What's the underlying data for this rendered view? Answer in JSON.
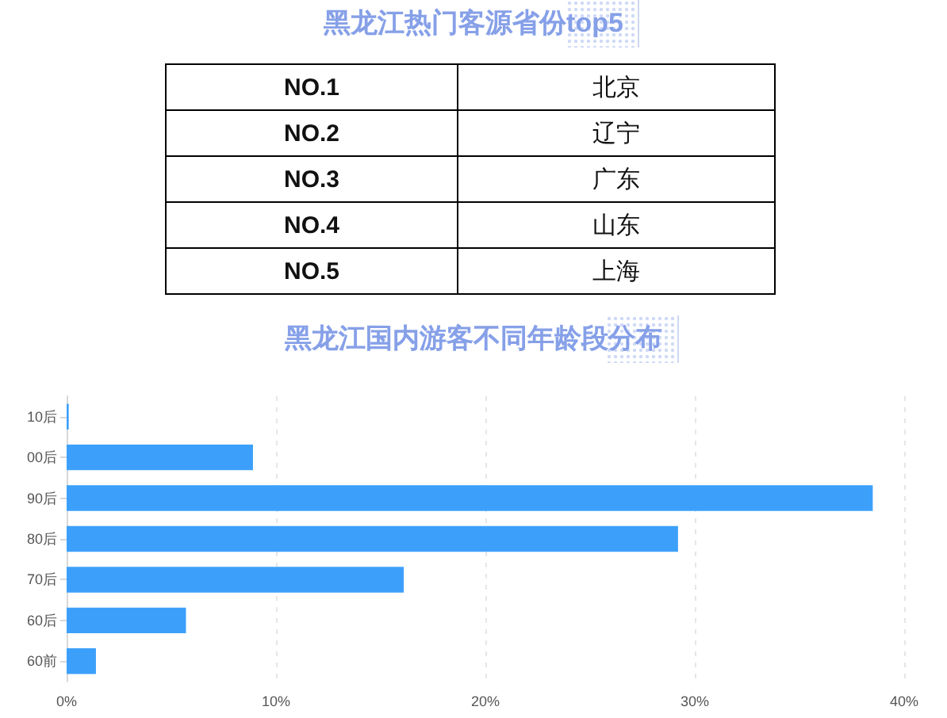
{
  "chart_data": [
    {
      "type": "other",
      "title": "黑龙江热门客源省份top5",
      "annotations": [
        "NO.1",
        "北京",
        "NO.2",
        "辽宁",
        "NO.3",
        "广东",
        "NO.4",
        "山东",
        "NO.5",
        "上海"
      ]
    },
    {
      "type": "bar",
      "title": "黑龙江国内游客不同年龄段分布",
      "orientation": "horizontal",
      "categories": [
        "10后",
        "00后",
        "90后",
        "80后",
        "70后",
        "60后",
        "60前"
      ],
      "values": [
        0.1,
        8.9,
        38.5,
        29.2,
        16.1,
        5.7,
        1.4
      ],
      "color": "#3ca0fb",
      "xlim": [
        0,
        40
      ],
      "xticks": [
        {
          "value": 0,
          "label": "0%"
        },
        {
          "value": 10,
          "label": "10%"
        },
        {
          "value": 20,
          "label": "20%"
        },
        {
          "value": 30,
          "label": "30%"
        },
        {
          "value": 40,
          "label": "40%"
        }
      ],
      "grid": "x"
    }
  ]
}
